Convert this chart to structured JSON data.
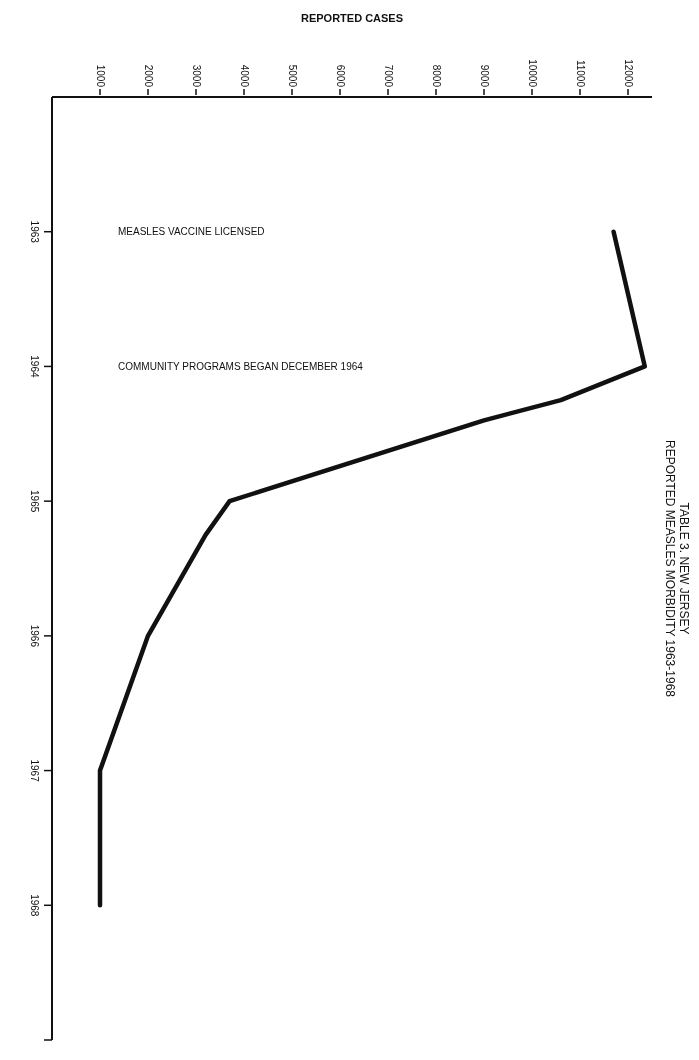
{
  "chart_data": {
    "type": "line",
    "title": "TABLE 3. NEW JERSEY",
    "subtitle": "REPORTED MEASLES MORBIDITY 1963-1968",
    "xlabel": "REPORTED CASES",
    "x": [
      11700,
      12350,
      10600,
      9000,
      3700,
      3200,
      2000,
      1000,
      1000
    ],
    "series": [
      {
        "color": "#111111",
        "values": [
          1963,
          1964,
          1964.25,
          1964.4,
          1965,
          1965.25,
          1966,
          1967,
          1968
        ]
      }
    ],
    "ylim": [
      1969,
      1962
    ],
    "yticks": [
      1963,
      1964,
      1965,
      1966,
      1967,
      1968,
      {
        "value": 1969,
        "label": null
      }
    ],
    "xlim": [
      0,
      12500
    ],
    "xticks": [
      1000,
      2000,
      3000,
      4000,
      5000,
      6000,
      7000,
      8000,
      9000,
      10000,
      11000,
      12000
    ],
    "annotations": [
      "MEASLES VACCINE LICENSED",
      "COMMUNITY PROGRAMS BEGAN DECEMBER 1964"
    ],
    "grid": false,
    "marker": "none",
    "line_style": "solid"
  }
}
